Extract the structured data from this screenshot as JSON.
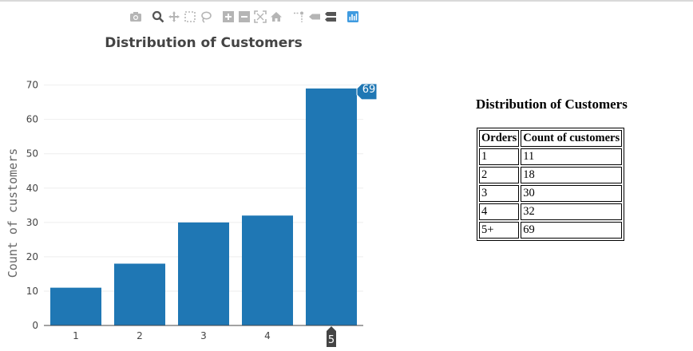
{
  "modebar": {
    "icons": [
      "camera-icon",
      "zoom-icon",
      "pan-icon",
      "box-select-icon",
      "lasso-icon",
      "zoom-in-icon",
      "zoom-out-icon",
      "autoscale-icon",
      "home-icon",
      "spike-lines-icon",
      "hover-closest-icon",
      "hover-compare-icon",
      "plotly-logo-icon"
    ]
  },
  "chart_data": {
    "type": "bar",
    "title": "Distribution of Customers",
    "xlabel": "",
    "ylabel": "Count of customers",
    "categories": [
      "1",
      "2",
      "3",
      "4",
      "5"
    ],
    "values": [
      11,
      18,
      30,
      32,
      69
    ],
    "ylim": [
      0,
      72
    ],
    "yticks": [
      0,
      10,
      20,
      30,
      40,
      50,
      60,
      70
    ],
    "grid": true,
    "bar_color": "#1f77b4",
    "hover": {
      "category": "5",
      "value": "69"
    }
  },
  "table": {
    "title": "Distribution of Customers",
    "headers": [
      "Orders",
      "Count of customers"
    ],
    "rows": [
      [
        "1",
        "11"
      ],
      [
        "2",
        "18"
      ],
      [
        "3",
        "30"
      ],
      [
        "4",
        "32"
      ],
      [
        "5+",
        "69"
      ]
    ]
  }
}
